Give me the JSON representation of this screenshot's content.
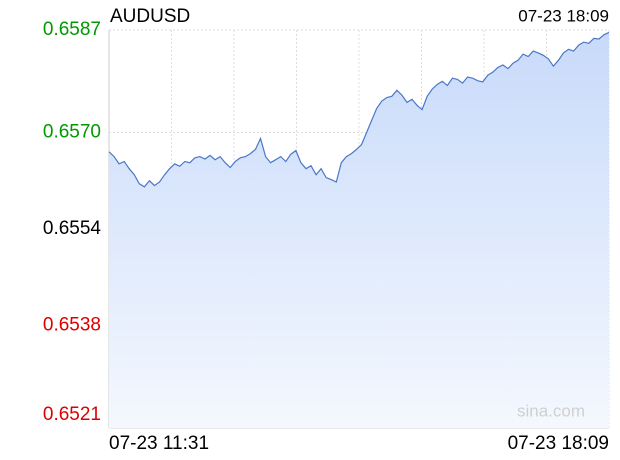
{
  "chart_data": {
    "type": "line",
    "title": "AUDUSD",
    "timestamp": "07-23 18:09",
    "watermark": "sina.com",
    "categories": [
      "07-23 11:31",
      null,
      null,
      null,
      null,
      null,
      null,
      null,
      null,
      null,
      null,
      null,
      null,
      null,
      null,
      null,
      null,
      null,
      null,
      null,
      null,
      null,
      null,
      null,
      null,
      null,
      null,
      null,
      null,
      null,
      null,
      null,
      null,
      null,
      null,
      null,
      null,
      null,
      null,
      null,
      null,
      null,
      null,
      null,
      null,
      null,
      null,
      null,
      null,
      null,
      null,
      null,
      null,
      null,
      null,
      null,
      null,
      null,
      null,
      null,
      null,
      null,
      null,
      null,
      null,
      null,
      null,
      null,
      null,
      null,
      null,
      null,
      null,
      null,
      null,
      null,
      null,
      null,
      null,
      null,
      null,
      null,
      null,
      null,
      null,
      null,
      null,
      null,
      null,
      null,
      null,
      null,
      null,
      null,
      null,
      null,
      null,
      null,
      null,
      "07-23 18:09"
    ],
    "series": [
      {
        "name": "AUDUSD",
        "color": "#4a78c8",
        "values": [
          0.65668,
          0.6566,
          0.65648,
          0.65652,
          0.6564,
          0.6563,
          0.65615,
          0.6561,
          0.6562,
          0.65612,
          0.65618,
          0.6563,
          0.6564,
          0.65648,
          0.65644,
          0.65652,
          0.6565,
          0.65658,
          0.6566,
          0.65656,
          0.65662,
          0.65655,
          0.6566,
          0.6565,
          0.65642,
          0.65652,
          0.65658,
          0.6566,
          0.65665,
          0.65672,
          0.6569,
          0.6566,
          0.6565,
          0.65655,
          0.6566,
          0.65652,
          0.65664,
          0.6567,
          0.6565,
          0.6564,
          0.65645,
          0.6563,
          0.6564,
          0.65625,
          0.65622,
          0.65618,
          0.6565,
          0.6566,
          0.65665,
          0.65672,
          0.6568,
          0.657,
          0.6572,
          0.6574,
          0.65752,
          0.65758,
          0.6576,
          0.6577,
          0.65762,
          0.6575,
          0.65755,
          0.65745,
          0.65738,
          0.6576,
          0.65772,
          0.6578,
          0.65785,
          0.65778,
          0.6579,
          0.65788,
          0.65782,
          0.65792,
          0.6579,
          0.65786,
          0.65784,
          0.65795,
          0.658,
          0.65808,
          0.65812,
          0.65806,
          0.65815,
          0.6582,
          0.6583,
          0.65826,
          0.65835,
          0.65832,
          0.65828,
          0.65822,
          0.6581,
          0.6582,
          0.65832,
          0.65838,
          0.65835,
          0.65845,
          0.6585,
          0.65848,
          0.65856,
          0.65855,
          0.65862,
          0.65866
        ]
      }
    ],
    "ylim": [
      0.6521,
      0.6587
    ],
    "yticks": [
      {
        "value": 0.6587,
        "label": "0.6587"
      },
      {
        "value": 0.657,
        "label": "0.6570"
      },
      {
        "value": 0.6554,
        "label": "0.6554"
      },
      {
        "value": 0.6538,
        "label": "0.6538"
      },
      {
        "value": 0.6521,
        "label": "0.6521"
      }
    ],
    "tick_colors": [
      "#009900",
      "#009900",
      "#000000",
      "#dd0000",
      "#dd0000"
    ],
    "grid": true,
    "fill_area": true
  }
}
